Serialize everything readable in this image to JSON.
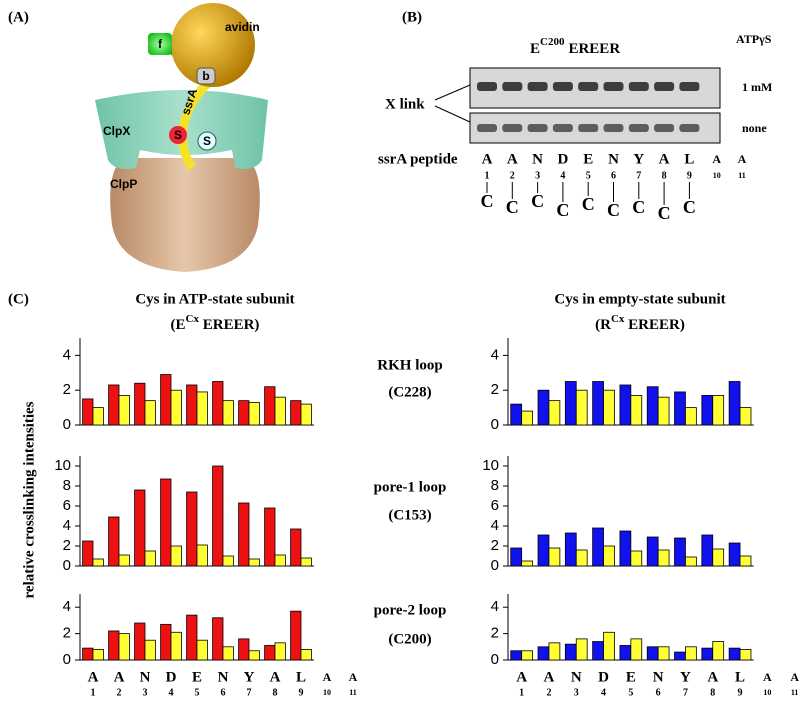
{
  "panel_labels": [
    "(A)",
    "(B)",
    "(C)"
  ],
  "diagram": {
    "avidin": "avidin",
    "fluor": "f",
    "biotin": "b",
    "peptide": "ssrA",
    "unfoldase": "ClpX",
    "protease": "ClpP",
    "cys_peptide": "S",
    "cys_pore": "S"
  },
  "gel": {
    "title": "E",
    "title_sup": "C200",
    "title_rest": "EREER",
    "condition_header": "ATPγS",
    "lanes": [
      "1 mM",
      "none"
    ],
    "crosslink_label": "X link",
    "peptide_label": "ssrA peptide",
    "residues": [
      "A",
      "A",
      "N",
      "D",
      "E",
      "N",
      "Y",
      "A",
      "L",
      "A",
      "A"
    ],
    "positions": [
      1,
      2,
      3,
      4,
      5,
      6,
      7,
      8,
      9,
      10,
      11
    ],
    "cys_label": "C"
  },
  "column_titles": [
    {
      "line1": "Cys in ATP-state subunit",
      "main": "(E",
      "sup": "Cx",
      "rest": " EREER)"
    },
    {
      "line1": "Cys in empty-state subunit",
      "main": "(R",
      "sup": "Cx",
      "rest": " EREER)"
    }
  ],
  "row_labels": [
    [
      "RKH loop",
      "(C228)"
    ],
    [
      "pore-1 loop",
      "(C153)"
    ],
    [
      "pore-2 loop",
      "(C200)"
    ]
  ],
  "y_axis_label": "relative crosslinking intensities",
  "chart_data": [
    {
      "type": "bar",
      "ylim": [
        0,
        5
      ],
      "yticks": [
        0,
        2,
        4
      ],
      "series": [
        {
          "color": "#ee1111",
          "values": [
            1.5,
            2.3,
            2.4,
            2.9,
            2.3,
            2.5,
            1.4,
            2.2,
            1.4,
            null,
            null
          ]
        },
        {
          "color": "#ffff33",
          "values": [
            1.0,
            1.7,
            1.4,
            2.0,
            1.9,
            1.4,
            1.3,
            1.6,
            1.2,
            null,
            null
          ]
        }
      ]
    },
    {
      "type": "bar",
      "ylim": [
        0,
        11
      ],
      "yticks": [
        0,
        2,
        4,
        6,
        8,
        10
      ],
      "series": [
        {
          "color": "#ee1111",
          "values": [
            2.5,
            4.9,
            7.6,
            8.7,
            7.4,
            10.0,
            6.3,
            5.8,
            3.7,
            null,
            null
          ]
        },
        {
          "color": "#ffff33",
          "values": [
            0.7,
            1.1,
            1.5,
            2.0,
            2.1,
            1.0,
            0.7,
            1.1,
            0.8,
            null,
            null
          ]
        }
      ]
    },
    {
      "type": "bar",
      "ylim": [
        0,
        5
      ],
      "yticks": [
        0,
        2,
        4
      ],
      "categories": [
        "A",
        "A",
        "N",
        "D",
        "E",
        "N",
        "Y",
        "A",
        "L",
        "A",
        "A"
      ],
      "positions": [
        1,
        2,
        3,
        4,
        5,
        6,
        7,
        8,
        9,
        10,
        11
      ],
      "series": [
        {
          "color": "#ee1111",
          "values": [
            0.9,
            2.2,
            2.8,
            2.7,
            3.4,
            3.2,
            1.6,
            1.1,
            3.7,
            null,
            null
          ]
        },
        {
          "color": "#ffff33",
          "values": [
            0.8,
            2.0,
            1.5,
            2.1,
            1.5,
            1.0,
            0.7,
            1.3,
            0.8,
            null,
            null
          ]
        }
      ]
    },
    {
      "type": "bar",
      "ylim": [
        0,
        5
      ],
      "yticks": [
        0,
        2,
        4
      ],
      "series": [
        {
          "color": "#1111ee",
          "values": [
            1.2,
            2.0,
            2.5,
            2.5,
            2.3,
            2.2,
            1.9,
            1.7,
            2.5,
            null,
            null
          ]
        },
        {
          "color": "#ffff33",
          "values": [
            0.8,
            1.4,
            2.0,
            2.0,
            1.7,
            1.6,
            1.0,
            1.7,
            1.0,
            null,
            null
          ]
        }
      ]
    },
    {
      "type": "bar",
      "ylim": [
        0,
        11
      ],
      "yticks": [
        0,
        2,
        4,
        6,
        8,
        10
      ],
      "series": [
        {
          "color": "#1111ee",
          "values": [
            1.8,
            3.1,
            3.3,
            3.8,
            3.5,
            2.9,
            2.8,
            3.1,
            2.3,
            null,
            null
          ]
        },
        {
          "color": "#ffff33",
          "values": [
            0.5,
            1.8,
            1.6,
            2.0,
            1.5,
            1.6,
            0.9,
            1.7,
            1.0,
            null,
            null
          ]
        }
      ]
    },
    {
      "type": "bar",
      "ylim": [
        0,
        5
      ],
      "yticks": [
        0,
        2,
        4
      ],
      "categories": [
        "A",
        "A",
        "N",
        "D",
        "E",
        "N",
        "Y",
        "A",
        "L",
        "A",
        "A"
      ],
      "positions": [
        1,
        2,
        3,
        4,
        5,
        6,
        7,
        8,
        9,
        10,
        11
      ],
      "series": [
        {
          "color": "#1111ee",
          "values": [
            0.7,
            1.0,
            1.2,
            1.4,
            1.1,
            1.0,
            0.6,
            0.9,
            0.9,
            null,
            null
          ]
        },
        {
          "color": "#ffff33",
          "values": [
            0.7,
            1.3,
            1.6,
            2.1,
            1.6,
            1.0,
            1.0,
            1.4,
            0.8,
            null,
            null
          ]
        }
      ]
    }
  ]
}
